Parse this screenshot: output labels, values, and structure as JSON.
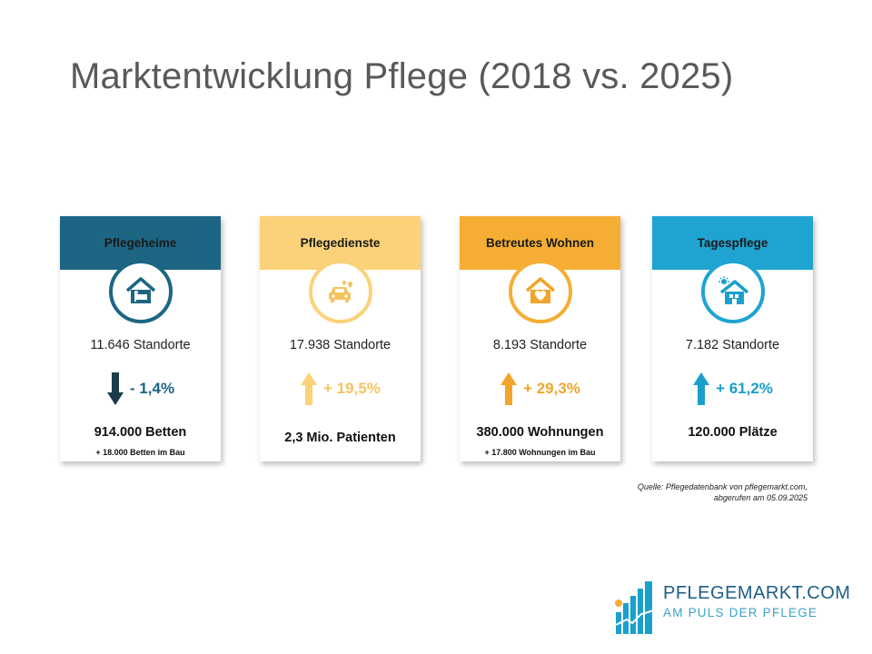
{
  "title": "Marktentwicklung Pflege (2018 vs. 2025)",
  "cards": [
    {
      "header": "Pflegeheime",
      "standorte": "11.646 Standorte",
      "change": "- 1,4%",
      "direction": "down",
      "main": "914.000 Betten",
      "sub": "+ 18.000 Betten im Bau",
      "icon": "nursing-home-icon",
      "header_color": "#1c6683",
      "accent_color": "#15607a"
    },
    {
      "header": "Pflegedienste",
      "standorte": "17.938 Standorte",
      "change": "+ 19,5%",
      "direction": "up",
      "main": "2,3 Mio. Patienten",
      "sub": "",
      "icon": "care-car-icon",
      "header_color": "#fbd279",
      "accent_color": "#f7c35f"
    },
    {
      "header": "Betreutes Wohnen",
      "standorte": "8.193 Standorte",
      "change": "+ 29,3%",
      "direction": "up",
      "main": "380.000 Wohnungen",
      "sub": "+ 17.800 Wohnungen im Bau",
      "icon": "house-heart-icon",
      "header_color": "#f5ae33",
      "accent_color": "#f2a52a"
    },
    {
      "header": "Tagespflege",
      "standorte": "7.182 Standorte",
      "change": "+ 61,2%",
      "direction": "up",
      "main": "120.000 Plätze",
      "sub": "",
      "icon": "house-sun-icon",
      "header_color": "#1fa4d1",
      "accent_color": "#1aa0cc"
    }
  ],
  "source": {
    "line1": "Quelle: Pflegedatenbank von pflegemarkt.com,",
    "line2": "abgerufen am 05.09.2025"
  },
  "logo": {
    "name": "PFLEGEMARKT.COM",
    "tagline": "AM PULS DER PFLEGE"
  }
}
